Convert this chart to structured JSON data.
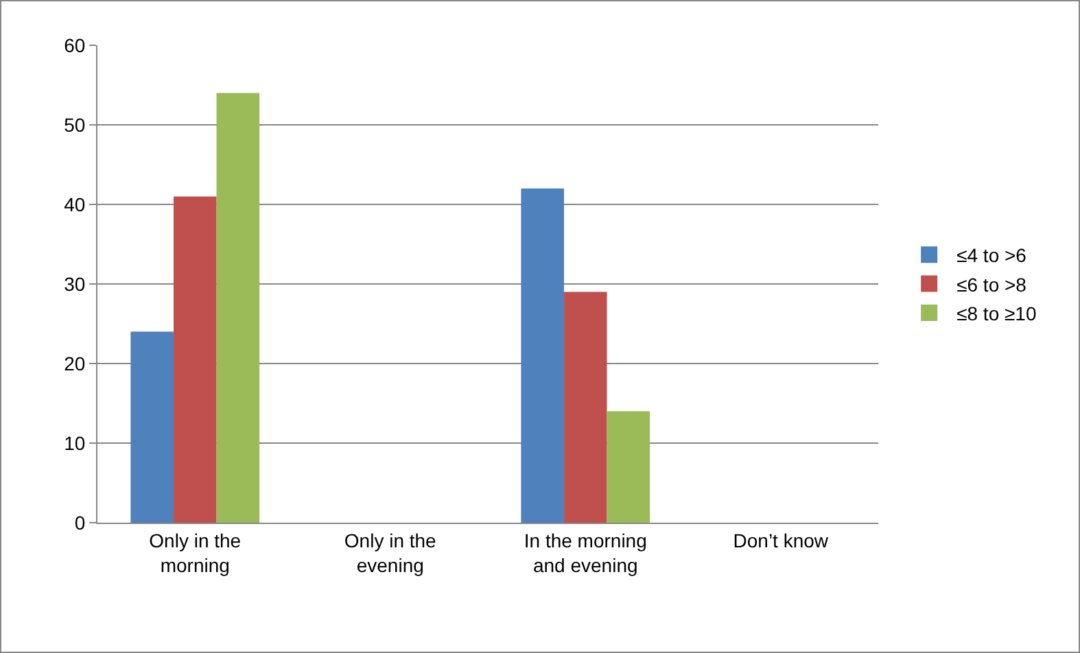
{
  "chart_data": {
    "type": "bar",
    "categories": [
      "Only in the morning",
      "Only in the evening",
      "In the morning and evening",
      "Don’t know"
    ],
    "series": [
      {
        "name": "≤4 to >6",
        "color": "#4f81bd",
        "values": [
          24,
          0,
          42,
          0
        ]
      },
      {
        "name": "≤6 to >8",
        "color": "#c0504d",
        "values": [
          41,
          0,
          29,
          0
        ]
      },
      {
        "name": "≤8 to ≥10",
        "color": "#9bbb59",
        "values": [
          54,
          0,
          14,
          0
        ]
      }
    ],
    "ylim": [
      0,
      60
    ],
    "yticks": [
      0,
      10,
      20,
      30,
      40,
      50,
      60
    ],
    "grid": "y",
    "legend": "right"
  }
}
